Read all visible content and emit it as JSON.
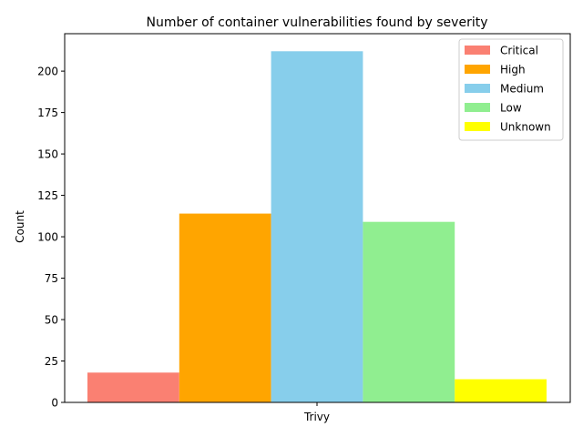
{
  "chart_data": {
    "type": "bar",
    "title": "Number of container vulnerabilities found by severity",
    "xlabel": "",
    "ylabel": "Count",
    "categories": [
      "Trivy"
    ],
    "series": [
      {
        "name": "Critical",
        "values": [
          18
        ],
        "color": "#fa8072"
      },
      {
        "name": "High",
        "values": [
          114
        ],
        "color": "#ffa500"
      },
      {
        "name": "Medium",
        "values": [
          212
        ],
        "color": "#87ceeb"
      },
      {
        "name": "Low",
        "values": [
          109
        ],
        "color": "#90ee90"
      },
      {
        "name": "Unknown",
        "values": [
          14
        ],
        "color": "#ffff00"
      }
    ],
    "ylim": [
      0,
      222.6
    ],
    "yticks": [
      0,
      25,
      50,
      75,
      100,
      125,
      150,
      175,
      200
    ],
    "grid": false,
    "legend_position": "top-right"
  }
}
